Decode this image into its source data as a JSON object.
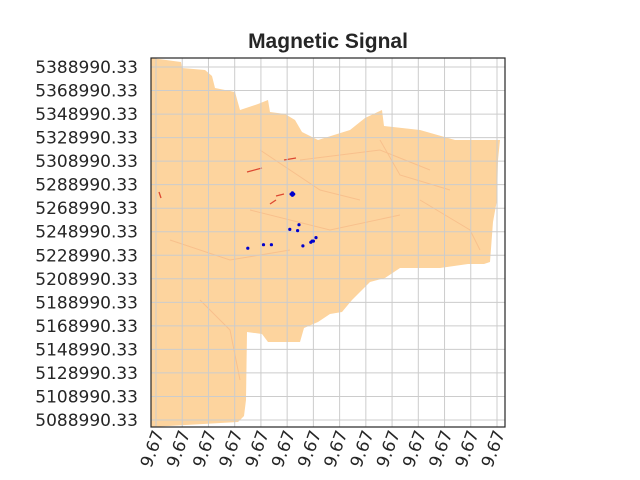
{
  "chart_data": {
    "type": "scatter",
    "title": "Magnetic Signal",
    "xlabel": "",
    "ylabel": "",
    "grid": true,
    "y_ticks": [
      "5388990.33",
      "5368990.33",
      "5348990.33",
      "5328990.33",
      "5308990.33",
      "5288990.33",
      "5268990.33",
      "5248990.33",
      "5228990.33",
      "5208990.33",
      "5188990.33",
      "5168990.33",
      "5148990.33",
      "5128990.33",
      "5108990.33",
      "5088990.33"
    ],
    "x_ticks": [
      "9.67",
      "9.67",
      "9.67",
      "9.67",
      "9.67",
      "9.67",
      "9.67",
      "9.67",
      "9.67",
      "9.67",
      "9.67",
      "9.67",
      "9.67",
      "9.67"
    ],
    "colors": {
      "survey_fill": "#fdd49e",
      "survey_detail": "#f4b07f",
      "anomaly_red": "#d7301f",
      "anomaly_blue": "#0000cc",
      "grid": "#cccccc",
      "axes": "#262626"
    },
    "series": [
      {
        "marker_color": "#0000cc",
        "points": [
          [
            5.6,
            7.4
          ],
          [
            6.1,
            7.75
          ],
          [
            6.0,
            7.6
          ],
          [
            5.9,
            7.55
          ],
          [
            5.95,
            7.6
          ],
          [
            3.5,
            7.3
          ],
          [
            4.1,
            7.45
          ],
          [
            4.4,
            7.45
          ],
          [
            5.1,
            8.1
          ],
          [
            5.4,
            8.05
          ],
          [
            5.45,
            8.3
          ],
          [
            5.15,
            9.6
          ],
          [
            5.2,
            9.65
          ],
          [
            5.25,
            9.6
          ],
          [
            5.2,
            9.55
          ]
        ]
      }
    ]
  }
}
